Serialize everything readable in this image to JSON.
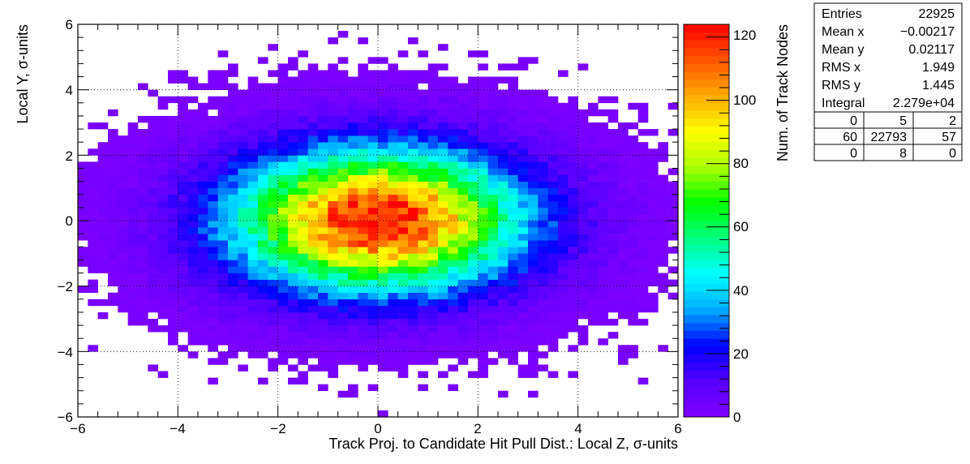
{
  "chart_data": {
    "type": "heatmap",
    "xlabel": "Track Proj. to Candidate Hit Pull Dist.: Local Z, σ-units",
    "ylabel": "Local Y, σ-units",
    "zlabel": "Num. of Track Nodes",
    "xlim": [
      -6,
      6
    ],
    "ylim": [
      -6,
      6
    ],
    "zlim": [
      0,
      124
    ],
    "x_ticks": [
      -6,
      -4,
      -2,
      0,
      2,
      4,
      6
    ],
    "y_ticks": [
      -6,
      -4,
      -2,
      0,
      2,
      4,
      6
    ],
    "z_ticks": [
      0,
      20,
      40,
      60,
      80,
      100,
      120
    ],
    "x_tick_labels": [
      "−6",
      "−4",
      "−2",
      "0",
      "2",
      "4",
      "6"
    ],
    "y_tick_labels": [
      "−6",
      "−4",
      "−2",
      "0",
      "2",
      "4",
      "6"
    ],
    "z_tick_labels": [
      "0",
      "20",
      "40",
      "60",
      "80",
      "100",
      "120"
    ],
    "bins": {
      "nx": 60,
      "ny": 60
    },
    "distribution": {
      "shape": "2D Gaussian",
      "peak_count": 124,
      "center_x": -0.00217,
      "center_y": 0.02117,
      "sigma_x": 1.949,
      "sigma_y": 1.445
    },
    "grid": true,
    "legend_placement": "colorbar-right",
    "palette": [
      "#8000ff",
      "#5500ff",
      "#0000ff",
      "#00aaff",
      "#00ffff",
      "#00ff80",
      "#00ff00",
      "#aaff00",
      "#ffff00",
      "#ffaa00",
      "#ff5500",
      "#ff0000"
    ]
  },
  "stats": {
    "rows": [
      {
        "label": "Entries",
        "value": "22925"
      },
      {
        "label": "Mean x",
        "value": "−0.00217"
      },
      {
        "label": "Mean y",
        "value": "0.02117"
      },
      {
        "label": "RMS x",
        "value": "1.949"
      },
      {
        "label": "RMS y",
        "value": "1.445"
      },
      {
        "label": "Integral",
        "value": "2.279e+04"
      }
    ],
    "grid": [
      [
        "0",
        "5",
        "2"
      ],
      [
        "60",
        "22793",
        "57"
      ],
      [
        "0",
        "8",
        "0"
      ]
    ]
  }
}
